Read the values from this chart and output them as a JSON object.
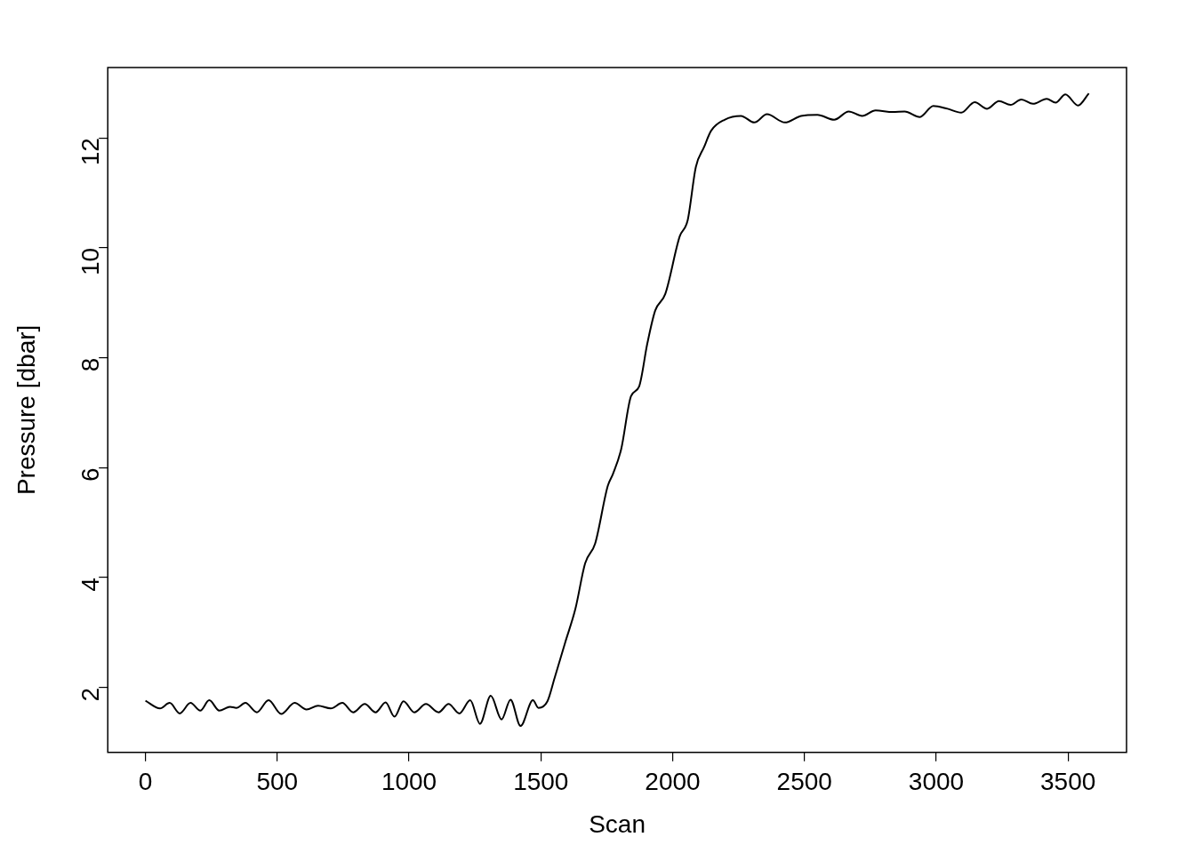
{
  "chart_data": {
    "type": "line",
    "xlabel": "Scan",
    "ylabel": "Pressure [dbar]",
    "xlim": [
      -143,
      3722
    ],
    "ylim": [
      0.82,
      13.28
    ],
    "xticks": [
      0,
      500,
      1000,
      1500,
      2000,
      2500,
      3000,
      3500
    ],
    "yticks": [
      2,
      4,
      6,
      8,
      10,
      12
    ],
    "grid": false,
    "legend": false,
    "marker": "none",
    "line_style": "solid",
    "series": [
      {
        "color": "#000000",
        "x": [
          0,
          55,
          92,
          130,
          171,
          208,
          242,
          280,
          321,
          345,
          379,
          423,
          467,
          515,
          566,
          611,
          655,
          703,
          747,
          788,
          832,
          873,
          911,
          945,
          979,
          1020,
          1064,
          1112,
          1150,
          1191,
          1232,
          1269,
          1310,
          1351,
          1385,
          1423,
          1470,
          1491,
          1525,
          1552,
          1593,
          1631,
          1668,
          1706,
          1754,
          1774,
          1805,
          1842,
          1873,
          1904,
          1934,
          1972,
          2027,
          2057,
          2088,
          2119,
          2146,
          2197,
          2259,
          2310,
          2358,
          2426,
          2487,
          2549,
          2613,
          2668,
          2719,
          2770,
          2835,
          2880,
          2938,
          2989,
          3043,
          3095,
          3146,
          3193,
          3238,
          3282,
          3323,
          3367,
          3419,
          3453,
          3490,
          3538,
          3579
        ],
        "values": [
          1.76,
          1.62,
          1.72,
          1.53,
          1.72,
          1.58,
          1.77,
          1.58,
          1.65,
          1.63,
          1.72,
          1.55,
          1.77,
          1.52,
          1.72,
          1.6,
          1.67,
          1.62,
          1.72,
          1.55,
          1.7,
          1.55,
          1.73,
          1.47,
          1.75,
          1.55,
          1.7,
          1.55,
          1.7,
          1.53,
          1.77,
          1.34,
          1.85,
          1.42,
          1.78,
          1.3,
          1.77,
          1.63,
          1.75,
          2.17,
          2.83,
          3.43,
          4.26,
          4.62,
          5.67,
          5.89,
          6.34,
          7.3,
          7.48,
          8.26,
          8.86,
          9.16,
          10.21,
          10.5,
          11.47,
          11.83,
          12.13,
          12.33,
          12.4,
          12.28,
          12.43,
          12.28,
          12.4,
          12.42,
          12.33,
          12.48,
          12.4,
          12.5,
          12.47,
          12.48,
          12.38,
          12.58,
          12.53,
          12.46,
          12.65,
          12.53,
          12.67,
          12.6,
          12.7,
          12.62,
          12.71,
          12.64,
          12.79,
          12.59,
          12.81
        ]
      }
    ]
  }
}
